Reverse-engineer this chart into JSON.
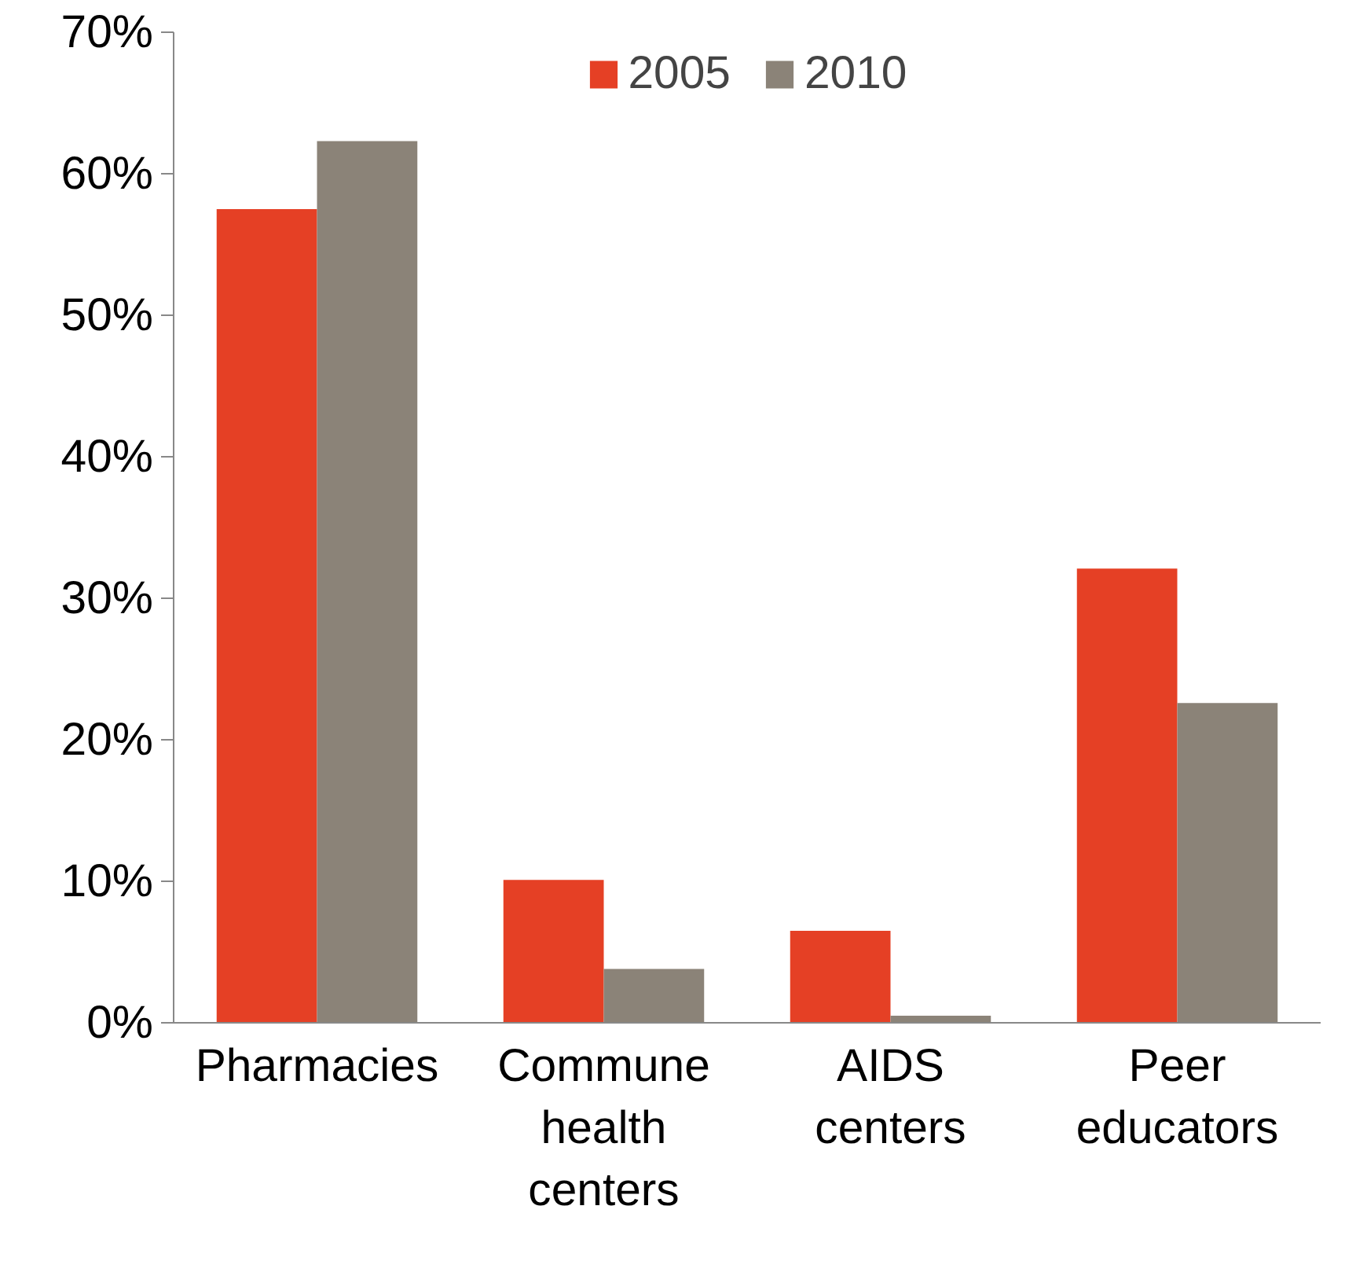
{
  "chart_data": {
    "type": "bar",
    "categories": [
      "Pharmacies",
      "Commune health centers",
      "AIDS centers",
      "Peer educators"
    ],
    "series": [
      {
        "name": "2005",
        "color": "#e54025",
        "values": [
          57.5,
          10.1,
          6.5,
          32.1
        ]
      },
      {
        "name": "2010",
        "color": "#8b8378",
        "values": [
          62.3,
          3.8,
          0.5,
          22.6
        ]
      }
    ],
    "ylim": [
      0,
      70
    ],
    "yticks": [
      {
        "value": 0,
        "label": "0%"
      },
      {
        "value": 10,
        "label": "10%"
      },
      {
        "value": 20,
        "label": "20%"
      },
      {
        "value": 30,
        "label": "30%"
      },
      {
        "value": 40,
        "label": "40%"
      },
      {
        "value": 50,
        "label": "50%"
      },
      {
        "value": 60,
        "label": "60%"
      },
      {
        "value": 70,
        "label": "70%"
      }
    ],
    "grid": false,
    "legend": "top"
  }
}
